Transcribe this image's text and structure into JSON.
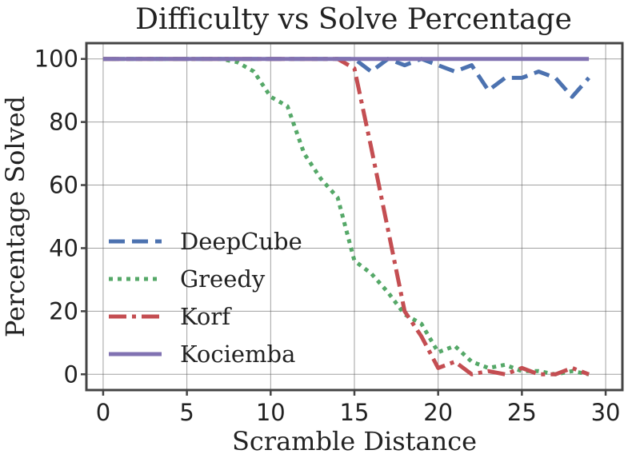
{
  "chart_data": {
    "type": "line",
    "title": "Difficulty vs Solve Percentage",
    "xlabel": "Scramble Distance",
    "ylabel": "Percentage Solved",
    "xlim": [
      -1,
      31
    ],
    "ylim": [
      -5,
      105
    ],
    "xticks": [
      0,
      5,
      10,
      15,
      20,
      25,
      30
    ],
    "yticks": [
      0,
      20,
      40,
      60,
      80,
      100
    ],
    "grid": true,
    "legend_position": "lower-left",
    "x": [
      0,
      1,
      2,
      3,
      4,
      5,
      6,
      7,
      8,
      9,
      10,
      11,
      12,
      13,
      14,
      15,
      16,
      17,
      18,
      19,
      20,
      21,
      22,
      23,
      24,
      25,
      26,
      27,
      28,
      29
    ],
    "series": [
      {
        "name": "DeepCube",
        "color": "#4c72b0",
        "style": "dashed",
        "values": [
          100,
          100,
          100,
          100,
          100,
          100,
          100,
          100,
          100,
          100,
          100,
          100,
          100,
          100,
          100,
          100,
          96,
          100,
          98,
          100,
          98,
          96,
          98,
          90,
          94,
          94,
          96,
          94,
          88,
          94
        ]
      },
      {
        "name": "Greedy",
        "color": "#55a868",
        "style": "dotted",
        "values": [
          100,
          100,
          100,
          100,
          100,
          100,
          100,
          100,
          99,
          96,
          88,
          85,
          70,
          62,
          56,
          36,
          32,
          26,
          19,
          16,
          7,
          9,
          4,
          2,
          3,
          1,
          1,
          0,
          1,
          0
        ]
      },
      {
        "name": "Korf",
        "color": "#c44e52",
        "style": "dashdot",
        "values": [
          100,
          100,
          100,
          100,
          100,
          100,
          100,
          100,
          100,
          100,
          100,
          100,
          100,
          100,
          100,
          97,
          72,
          46,
          20,
          12,
          2,
          4,
          0,
          1,
          0,
          2,
          0,
          0,
          2,
          0
        ]
      },
      {
        "name": "Kociemba",
        "color": "#8172b2",
        "style": "solid",
        "values": [
          100,
          100,
          100,
          100,
          100,
          100,
          100,
          100,
          100,
          100,
          100,
          100,
          100,
          100,
          100,
          100,
          100,
          100,
          100,
          100,
          100,
          100,
          100,
          100,
          100,
          100,
          100,
          100,
          100,
          100
        ]
      }
    ]
  }
}
